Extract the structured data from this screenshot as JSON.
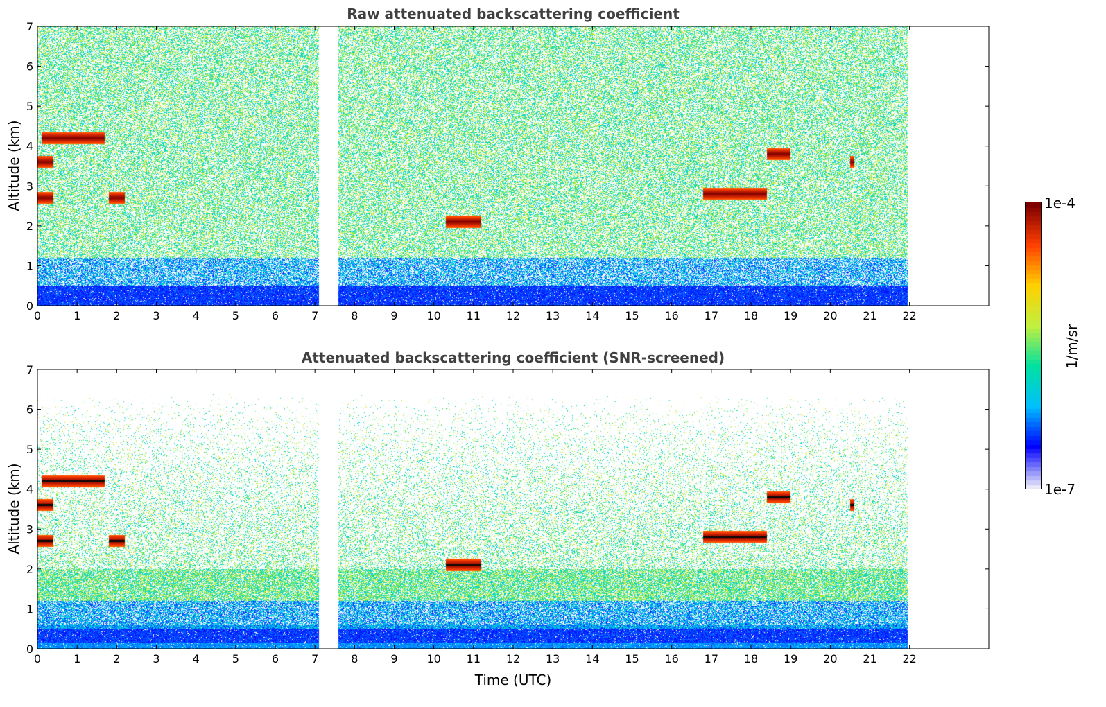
{
  "chart_data": [
    {
      "type": "heatmap",
      "title": "Raw attenuated backscattering coefficient",
      "xlabel": "",
      "ylabel": "Altitude (km)",
      "xlim": [
        0,
        24
      ],
      "ylim": [
        0,
        7
      ],
      "x_ticks": [
        "0",
        "1",
        "2",
        "3",
        "4",
        "5",
        "6",
        "7",
        "8",
        "9",
        "10",
        "11",
        "12",
        "13",
        "14",
        "15",
        "16",
        "17",
        "18",
        "19",
        "20",
        "21",
        "22"
      ],
      "y_ticks": [
        "0",
        "1",
        "2",
        "3",
        "4",
        "5",
        "6",
        "7"
      ],
      "data_gaps_hours": [
        [
          7.1,
          7.6
        ],
        [
          21.95,
          24
        ]
      ],
      "cloud_features": [
        {
          "time_start": 0.1,
          "time_end": 1.7,
          "altitude_km": 4.2
        },
        {
          "time_start": 0.0,
          "time_end": 0.4,
          "altitude_km": 3.6
        },
        {
          "time_start": 0.0,
          "time_end": 0.4,
          "altitude_km": 2.7
        },
        {
          "time_start": 1.8,
          "time_end": 2.2,
          "altitude_km": 2.7
        },
        {
          "time_start": 10.3,
          "time_end": 11.2,
          "altitude_km": 2.1
        },
        {
          "time_start": 16.8,
          "time_end": 18.4,
          "altitude_km": 2.8
        },
        {
          "time_start": 18.4,
          "time_end": 19.0,
          "altitude_km": 3.8
        },
        {
          "time_start": 20.5,
          "time_end": 20.6,
          "altitude_km": 3.6
        }
      ]
    },
    {
      "type": "heatmap",
      "title": "Attenuated backscattering coefficient (SNR-screened)",
      "xlabel": "Time (UTC)",
      "ylabel": "Altitude (km)",
      "xlim": [
        0,
        24
      ],
      "ylim": [
        0,
        7
      ],
      "x_ticks": [
        "0",
        "1",
        "2",
        "3",
        "4",
        "5",
        "6",
        "7",
        "8",
        "9",
        "10",
        "11",
        "12",
        "13",
        "14",
        "15",
        "16",
        "17",
        "18",
        "19",
        "20",
        "21",
        "22"
      ],
      "y_ticks": [
        "0",
        "1",
        "2",
        "3",
        "4",
        "5",
        "6",
        "7"
      ],
      "data_gaps_hours": [
        [
          7.1,
          7.6
        ],
        [
          21.95,
          24
        ]
      ]
    }
  ],
  "colorbar": {
    "label": "1/m/sr",
    "max_label": "1e-4",
    "min_label": "1e-7",
    "scale": "log",
    "colormap": "jet",
    "colors": [
      "#e8e8f8",
      "#0000ff",
      "#00bfff",
      "#00e0a0",
      "#c0f040",
      "#ffd000",
      "#ff4000",
      "#800000"
    ]
  }
}
